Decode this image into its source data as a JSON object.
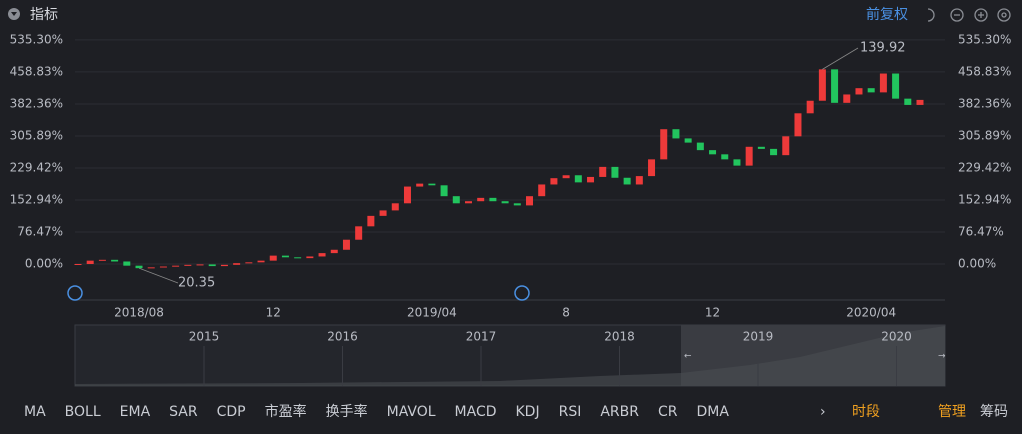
{
  "header": {
    "title": "指标",
    "adjust": "前复权"
  },
  "chart_data": {
    "type": "candlestick",
    "categories": [
      null,
      null,
      null,
      null,
      null,
      "2018/08",
      null,
      null,
      null,
      null,
      null,
      null,
      null,
      null,
      null,
      null,
      "12",
      null,
      null,
      null,
      null,
      null,
      null,
      null,
      null,
      null,
      null,
      null,
      null,
      "2019/04",
      null,
      null,
      null,
      null,
      null,
      null,
      null,
      null,
      null,
      null,
      "8",
      null,
      null,
      null,
      null,
      null,
      null,
      null,
      null,
      null,
      null,
      null,
      "12",
      null,
      null,
      null,
      null,
      null,
      null,
      null,
      null,
      null,
      null,
      null,
      null,
      "2020/04",
      null,
      null,
      null,
      null
    ],
    "values": [
      0,
      8,
      10,
      6,
      -4,
      -10,
      -8,
      -6,
      -4,
      -2,
      -1,
      -5,
      -2,
      2,
      4,
      8,
      20,
      16,
      14,
      18,
      26,
      34,
      58,
      90,
      115,
      128,
      145,
      185,
      192,
      188,
      162,
      145,
      150,
      158,
      150,
      145,
      140,
      162,
      190,
      205,
      212,
      195,
      208,
      232,
      206,
      190,
      210,
      250,
      322,
      300,
      290,
      272,
      262,
      250,
      235,
      280,
      275,
      260,
      305,
      360,
      390,
      465,
      385,
      405,
      420,
      410,
      455,
      395,
      380,
      392
    ],
    "up_color": "#ee3a3a",
    "down_color": "#22c55e",
    "ylim": [
      -86,
      559
    ],
    "yticks": [
      {
        "value": 0,
        "label": "0.00%"
      },
      {
        "value": 76.47,
        "label": "76.47%"
      },
      {
        "value": 152.94,
        "label": "152.94%"
      },
      {
        "value": 229.42,
        "label": "229.42%"
      },
      {
        "value": 305.89,
        "label": "305.89%"
      },
      {
        "value": 382.36,
        "label": "382.36%"
      },
      {
        "value": 458.83,
        "label": "458.83%"
      },
      {
        "value": 535.3,
        "label": "535.30%"
      }
    ],
    "grid": true,
    "annotations": [
      "139.92",
      "20.35"
    ]
  },
  "navigator": {
    "years": [
      "2015",
      "2016",
      "2017",
      "2018",
      "2019",
      "2020"
    ]
  },
  "tabs": [
    "MA",
    "BOLL",
    "EMA",
    "SAR",
    "CDP",
    "市盈率",
    "换手率",
    "MAVOL",
    "MACD",
    "KDJ",
    "RSI",
    "ARBR",
    "CR",
    "DMA"
  ],
  "period": "时段",
  "actions": [
    "管理",
    "筹码"
  ]
}
